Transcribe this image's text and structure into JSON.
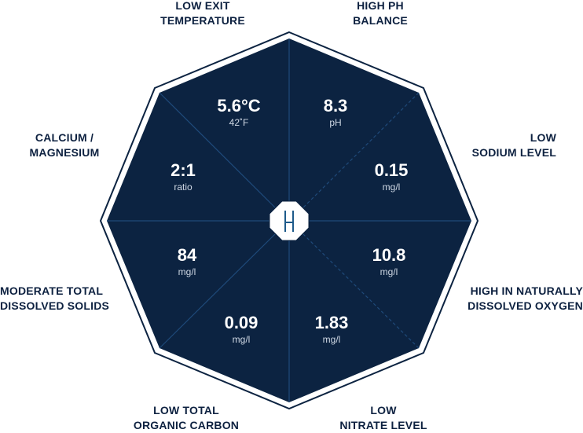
{
  "colors": {
    "fill": "#0c2341",
    "border": "#0c2341",
    "divider": "#1f4a7a",
    "text": "#0d2140"
  },
  "center": {
    "logo_icon": "h-logo-icon"
  },
  "segments": [
    {
      "id": "exit-temperature",
      "label_lines": [
        "LOW EXIT",
        "TEMPERATURE"
      ],
      "value": "5.6°C",
      "unit": "42˚F"
    },
    {
      "id": "ph-balance",
      "label_lines": [
        "HIGH PH",
        "BALANCE"
      ],
      "value": "8.3",
      "unit": "pH"
    },
    {
      "id": "sodium-level",
      "label_lines": [
        "LOW",
        "SODIUM LEVEL"
      ],
      "value": "0.15",
      "unit": "mg/l"
    },
    {
      "id": "dissolved-oxygen",
      "label_lines": [
        "HIGH IN NATURALLY",
        "DISSOLVED OXYGEN"
      ],
      "value": "10.8",
      "unit": "mg/l"
    },
    {
      "id": "nitrate-level",
      "label_lines": [
        "LOW",
        "NITRATE LEVEL"
      ],
      "value": "1.83",
      "unit": "mg/l"
    },
    {
      "id": "organic-carbon",
      "label_lines": [
        "LOW TOTAL",
        "ORGANIC CARBON"
      ],
      "value": "0.09",
      "unit": "mg/l"
    },
    {
      "id": "dissolved-solids",
      "label_lines": [
        "MODERATE TOTAL",
        "DISSOLVED SOLIDS"
      ],
      "value": "84",
      "unit": "mg/l"
    },
    {
      "id": "calcium-magnesium",
      "label_lines": [
        "CALCIUM /",
        "MAGNESIUM"
      ],
      "value": "2:1",
      "unit": "ratio"
    }
  ]
}
